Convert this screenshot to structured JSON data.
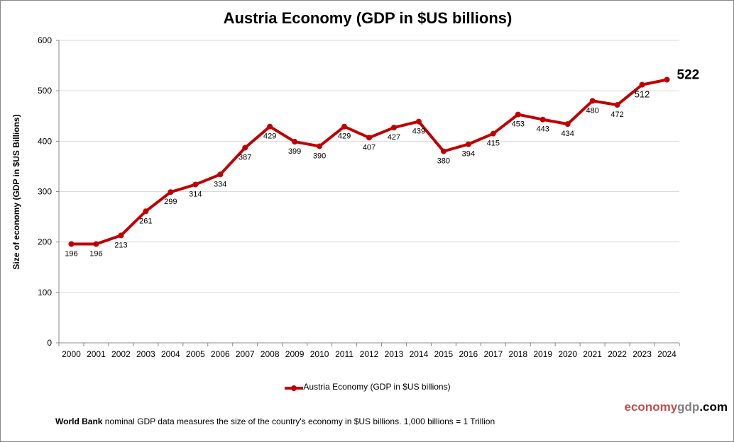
{
  "chart_data": {
    "type": "line",
    "title": "Austria Economy (GDP in $US billions)",
    "ylabel": "Size of economy (GDP in $US Billions)",
    "xlabel": "",
    "ylim": [
      0,
      600
    ],
    "yticks": [
      0,
      100,
      200,
      300,
      400,
      500,
      600
    ],
    "grid": "horizontal",
    "legend_placement": "bottom",
    "categories": [
      "2000",
      "2001",
      "2002",
      "2003",
      "2004",
      "2005",
      "2006",
      "2007",
      "2008",
      "2009",
      "2010",
      "2011",
      "2012",
      "2013",
      "2014",
      "2015",
      "2016",
      "2017",
      "2018",
      "2019",
      "2020",
      "2021",
      "2022",
      "2023",
      "2024"
    ],
    "series": [
      {
        "name": "Austria Economy (GDP in $US billions)",
        "color": "#c00000",
        "values": [
          196,
          196,
          213,
          261,
          299,
          314,
          334,
          387,
          429,
          399,
          390,
          429,
          407,
          427,
          439,
          380,
          394,
          415,
          453,
          443,
          434,
          480,
          472,
          512,
          522
        ]
      }
    ]
  },
  "footer": {
    "bold": "World Bank",
    "text": " nominal GDP data  measures the size of the country's economy in $US billions. 1,000 billions = 1 Trillion"
  },
  "logo": {
    "part1": "economy",
    "part2": "gdp",
    "part3": ".com",
    "colors": [
      "#c0504d",
      "#808080",
      "#000000"
    ]
  }
}
